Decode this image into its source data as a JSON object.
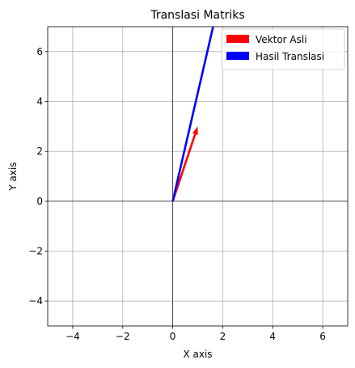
{
  "chart_data": {
    "type": "quiver",
    "title": "Translasi Matriks",
    "xlabel": "X axis",
    "ylabel": "Y axis",
    "xlim": [
      -5,
      7
    ],
    "ylim": [
      -5,
      7
    ],
    "xticks": [
      -4,
      -2,
      0,
      2,
      4,
      6
    ],
    "yticks": [
      -4,
      -2,
      0,
      2,
      4,
      6
    ],
    "tick_labels_x": [
      "−4",
      "−2",
      "0",
      "2",
      "4",
      "6"
    ],
    "tick_labels_y": [
      "−4",
      "−2",
      "0",
      "2",
      "4",
      "6"
    ],
    "grid": true,
    "legend_position": "top-right",
    "series": [
      {
        "name": "Vektor Asli",
        "color": "#ff0000",
        "origin": [
          0,
          0
        ],
        "vector": [
          1,
          3
        ]
      },
      {
        "name": "Hasil Translasi",
        "color": "#0000ff",
        "origin": [
          0,
          0
        ],
        "vector": [
          3,
          13
        ]
      }
    ]
  }
}
